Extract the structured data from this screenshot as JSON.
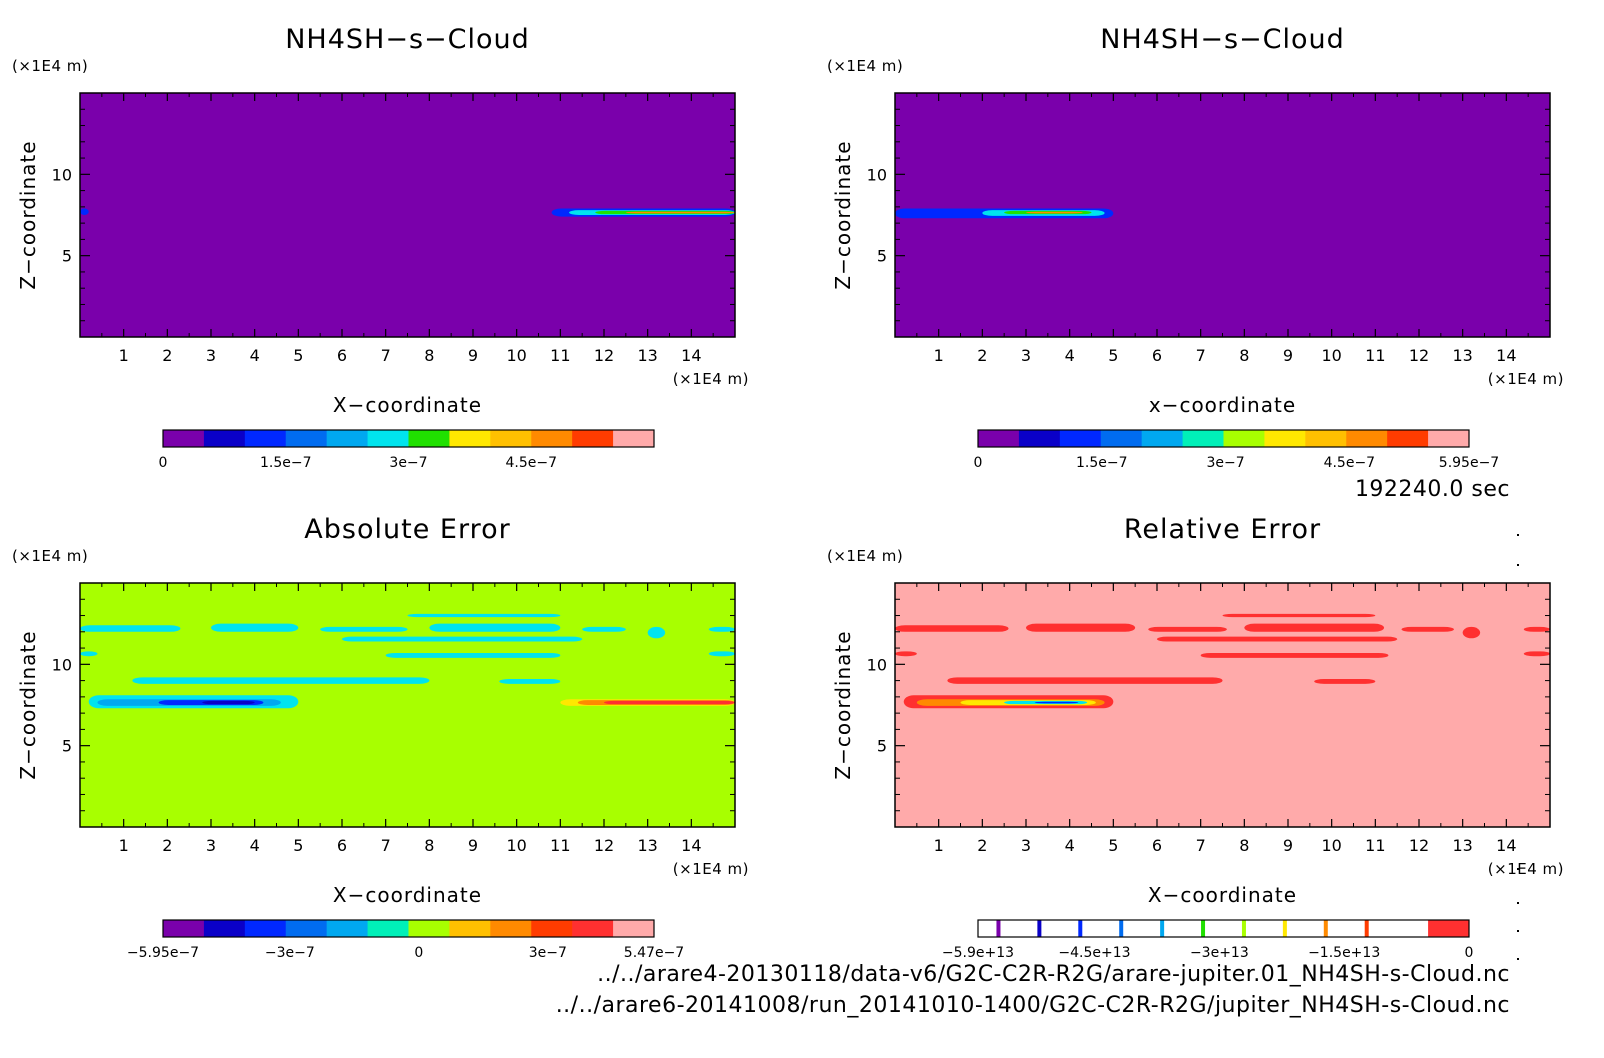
{
  "time_label": "192240.0 sec",
  "file_lines": [
    "../../arare4-20130118/data-v6/G2C-C2R-R2G/arare-jupiter.01_NH4SH-s-Cloud.nc",
    "../../arare6-20141008/run_20141010-1400/G2C-C2R-R2G/jupiter_NH4SH-s-Cloud.nc"
  ],
  "colors": {
    "purple": "#7a00ab",
    "navy": "#0a00c8",
    "blue": "#0028ff",
    "mblue": "#006cf0",
    "lblue": "#00a8f0",
    "cyan": "#00e4ee",
    "aqua": "#00f0b8",
    "green": "#20e000",
    "lime": "#a8ff00",
    "yellow": "#ffe800",
    "gold": "#ffc000",
    "orange": "#ff8a00",
    "redorange": "#ff3c00",
    "red": "#ff3030",
    "pink": "#ffaaaa",
    "white": "#ffffff"
  },
  "chart_data": [
    {
      "type": "heatmap",
      "title": "NH4SH−s−Cloud",
      "xlabel": "X−coordinate",
      "ylabel": "Z−coordinate",
      "x_unit": "(×1E4 m)",
      "y_unit": "(×1E4 m)",
      "xlim": [
        0,
        15
      ],
      "ylim": [
        0,
        15
      ],
      "x_ticks": [
        1,
        2,
        3,
        4,
        5,
        6,
        7,
        8,
        9,
        10,
        11,
        12,
        13,
        14
      ],
      "y_ticks": [
        5,
        10
      ],
      "background": "purple",
      "features": [
        {
          "x": [
            10.8,
            15
          ],
          "z": [
            7.4,
            7.9
          ],
          "color": "blue"
        },
        {
          "x": [
            11.2,
            15
          ],
          "z": [
            7.5,
            7.8
          ],
          "color": "cyan"
        },
        {
          "x": [
            11.8,
            15
          ],
          "z": [
            7.55,
            7.75
          ],
          "color": "green"
        },
        {
          "x": [
            12.5,
            15
          ],
          "z": [
            7.6,
            7.7
          ],
          "color": "orange"
        },
        {
          "x": [
            0,
            0.2
          ],
          "z": [
            7.5,
            7.9
          ],
          "color": "blue"
        }
      ],
      "colorbar": {
        "colors": [
          "purple",
          "navy",
          "blue",
          "mblue",
          "lblue",
          "cyan",
          "green",
          "yellow",
          "gold",
          "orange",
          "redorange",
          "pink"
        ],
        "tick_labels": [
          "0",
          "1.5e−7",
          "3e−7",
          "4.5e−7"
        ],
        "tick_values": [
          0,
          1.5e-07,
          3e-07,
          4.5e-07
        ],
        "range": [
          0,
          6e-07
        ]
      }
    },
    {
      "type": "heatmap",
      "title": "NH4SH−s−Cloud",
      "xlabel": "x−coordinate",
      "ylabel": "Z−coordinate",
      "x_unit": "(×1E4 m)",
      "y_unit": "(×1E4 m)",
      "xlim": [
        0,
        15
      ],
      "ylim": [
        0,
        15
      ],
      "x_ticks": [
        1,
        2,
        3,
        4,
        5,
        6,
        7,
        8,
        9,
        10,
        11,
        12,
        13,
        14
      ],
      "y_ticks": [
        5,
        10
      ],
      "background": "purple",
      "features": [
        {
          "x": [
            0,
            5
          ],
          "z": [
            7.3,
            7.9
          ],
          "color": "blue"
        },
        {
          "x": [
            2.0,
            4.8
          ],
          "z": [
            7.45,
            7.8
          ],
          "color": "cyan"
        },
        {
          "x": [
            2.5,
            4.5
          ],
          "z": [
            7.55,
            7.75
          ],
          "color": "green"
        },
        {
          "x": [
            3.0,
            4.3
          ],
          "z": [
            7.6,
            7.7
          ],
          "color": "orange"
        }
      ],
      "colorbar": {
        "colors": [
          "purple",
          "navy",
          "blue",
          "mblue",
          "lblue",
          "aqua",
          "lime",
          "yellow",
          "gold",
          "orange",
          "redorange",
          "pink"
        ],
        "tick_labels": [
          "0",
          "1.5e−7",
          "3e−7",
          "4.5e−7",
          "5.95e−7"
        ],
        "tick_values": [
          0,
          1.5e-07,
          3e-07,
          4.5e-07,
          5.95e-07
        ],
        "range": [
          0,
          5.95e-07
        ]
      }
    },
    {
      "type": "heatmap",
      "title": "Absolute Error",
      "xlabel": "X−coordinate",
      "ylabel": "Z−coordinate",
      "x_unit": "(×1E4 m)",
      "y_unit": "(×1E4 m)",
      "xlim": [
        0,
        15
      ],
      "ylim": [
        0,
        15
      ],
      "x_ticks": [
        1,
        2,
        3,
        4,
        5,
        6,
        7,
        8,
        9,
        10,
        11,
        12,
        13,
        14
      ],
      "y_ticks": [
        5,
        10
      ],
      "background": "lime",
      "features": [
        {
          "x": [
            0,
            2.3
          ],
          "z": [
            12.0,
            12.4
          ],
          "color": "cyan"
        },
        {
          "x": [
            3.0,
            5.0
          ],
          "z": [
            12.0,
            12.5
          ],
          "color": "cyan"
        },
        {
          "x": [
            5.5,
            7.5
          ],
          "z": [
            12.0,
            12.3
          ],
          "color": "cyan"
        },
        {
          "x": [
            8.0,
            11.0
          ],
          "z": [
            12.0,
            12.5
          ],
          "color": "cyan"
        },
        {
          "x": [
            11.5,
            12.5
          ],
          "z": [
            12.0,
            12.3
          ],
          "color": "cyan"
        },
        {
          "x": [
            13.0,
            13.4
          ],
          "z": [
            11.6,
            12.3
          ],
          "color": "cyan"
        },
        {
          "x": [
            14.4,
            15
          ],
          "z": [
            12.0,
            12.3
          ],
          "color": "cyan"
        },
        {
          "x": [
            7.5,
            11.0
          ],
          "z": [
            12.9,
            13.1
          ],
          "color": "cyan"
        },
        {
          "x": [
            6.0,
            11.5
          ],
          "z": [
            11.4,
            11.7
          ],
          "color": "cyan"
        },
        {
          "x": [
            0,
            0.4
          ],
          "z": [
            10.5,
            10.8
          ],
          "color": "cyan"
        },
        {
          "x": [
            7.0,
            11.0
          ],
          "z": [
            10.4,
            10.7
          ],
          "color": "cyan"
        },
        {
          "x": [
            14.4,
            15
          ],
          "z": [
            10.5,
            10.8
          ],
          "color": "cyan"
        },
        {
          "x": [
            1.2,
            8.0
          ],
          "z": [
            8.8,
            9.2
          ],
          "color": "cyan"
        },
        {
          "x": [
            9.6,
            11.0
          ],
          "z": [
            8.8,
            9.1
          ],
          "color": "cyan"
        },
        {
          "x": [
            0.2,
            5.0
          ],
          "z": [
            7.3,
            8.1
          ],
          "color": "cyan"
        },
        {
          "x": [
            0.4,
            4.6
          ],
          "z": [
            7.45,
            7.85
          ],
          "color": "lblue"
        },
        {
          "x": [
            1.8,
            4.2
          ],
          "z": [
            7.5,
            7.8
          ],
          "color": "blue"
        },
        {
          "x": [
            2.8,
            4.0
          ],
          "z": [
            7.55,
            7.75
          ],
          "color": "navy"
        },
        {
          "x": [
            11.0,
            15
          ],
          "z": [
            7.45,
            7.85
          ],
          "color": "yellow"
        },
        {
          "x": [
            11.4,
            15
          ],
          "z": [
            7.5,
            7.8
          ],
          "color": "orange"
        },
        {
          "x": [
            12.0,
            15
          ],
          "z": [
            7.55,
            7.75
          ],
          "color": "red"
        }
      ],
      "colorbar": {
        "colors": [
          "purple",
          "navy",
          "blue",
          "mblue",
          "lblue",
          "aqua",
          "lime",
          "gold",
          "orange",
          "redorange",
          "red",
          "pink"
        ],
        "tick_labels": [
          "−5.95e−7",
          "−3e−7",
          "0",
          "3e−7",
          "5.47e−7"
        ],
        "tick_values": [
          -5.95e-07,
          -3e-07,
          0,
          3e-07,
          5.47e-07
        ],
        "range": [
          -5.95e-07,
          5.47e-07
        ]
      }
    },
    {
      "type": "heatmap",
      "title": "Relative Error",
      "xlabel": "X−coordinate",
      "ylabel": "Z−coordinate",
      "x_unit": "(×1E4 m)",
      "y_unit": "(×1E4 m)",
      "xlim": [
        0,
        15
      ],
      "ylim": [
        0,
        15
      ],
      "x_ticks": [
        1,
        2,
        3,
        4,
        5,
        6,
        7,
        8,
        9,
        10,
        11,
        12,
        13,
        14
      ],
      "y_ticks": [
        5,
        10
      ],
      "background": "pink",
      "features": [
        {
          "x": [
            0,
            2.6
          ],
          "z": [
            12.0,
            12.4
          ],
          "color": "red"
        },
        {
          "x": [
            3.0,
            5.5
          ],
          "z": [
            12.0,
            12.5
          ],
          "color": "red"
        },
        {
          "x": [
            5.8,
            7.6
          ],
          "z": [
            12.0,
            12.3
          ],
          "color": "red"
        },
        {
          "x": [
            8.0,
            11.2
          ],
          "z": [
            12.0,
            12.5
          ],
          "color": "red"
        },
        {
          "x": [
            11.6,
            12.8
          ],
          "z": [
            12.0,
            12.3
          ],
          "color": "red"
        },
        {
          "x": [
            13.0,
            13.4
          ],
          "z": [
            11.6,
            12.3
          ],
          "color": "red"
        },
        {
          "x": [
            14.4,
            15
          ],
          "z": [
            12.0,
            12.3
          ],
          "color": "red"
        },
        {
          "x": [
            7.5,
            11.0
          ],
          "z": [
            12.9,
            13.1
          ],
          "color": "red"
        },
        {
          "x": [
            6.0,
            11.5
          ],
          "z": [
            11.4,
            11.7
          ],
          "color": "red"
        },
        {
          "x": [
            0,
            0.5
          ],
          "z": [
            10.5,
            10.8
          ],
          "color": "red"
        },
        {
          "x": [
            7.0,
            11.3
          ],
          "z": [
            10.4,
            10.7
          ],
          "color": "red"
        },
        {
          "x": [
            14.4,
            15
          ],
          "z": [
            10.5,
            10.8
          ],
          "color": "red"
        },
        {
          "x": [
            1.2,
            7.5
          ],
          "z": [
            8.8,
            9.2
          ],
          "color": "red"
        },
        {
          "x": [
            9.6,
            11.0
          ],
          "z": [
            8.8,
            9.1
          ],
          "color": "red"
        },
        {
          "x": [
            0.2,
            5.0
          ],
          "z": [
            7.3,
            8.1
          ],
          "color": "red"
        },
        {
          "x": [
            0.5,
            4.8
          ],
          "z": [
            7.45,
            7.85
          ],
          "color": "orange"
        },
        {
          "x": [
            1.5,
            4.6
          ],
          "z": [
            7.5,
            7.8
          ],
          "color": "yellow"
        },
        {
          "x": [
            2.5,
            4.4
          ],
          "z": [
            7.55,
            7.75
          ],
          "color": "cyan"
        },
        {
          "x": [
            3.2,
            4.2
          ],
          "z": [
            7.6,
            7.7
          ],
          "color": "blue"
        }
      ],
      "colorbar": {
        "colors": [
          "white",
          "white",
          "white",
          "white",
          "white",
          "white",
          "white",
          "white",
          "white",
          "white",
          "white",
          "red"
        ],
        "separators": [
          "purple",
          "navy",
          "blue",
          "mblue",
          "lblue",
          "green",
          "lime",
          "yellow",
          "orange",
          "redorange",
          "white"
        ],
        "tick_labels": [
          "−5.9e+13",
          "−4.5e+13",
          "−3e+13",
          "−1.5e+13",
          "0"
        ],
        "tick_values": [
          -59000000000000.0,
          -45000000000000.0,
          -30000000000000.0,
          -15000000000000.0,
          0
        ],
        "range": [
          -59000000000000.0,
          0
        ]
      }
    }
  ]
}
